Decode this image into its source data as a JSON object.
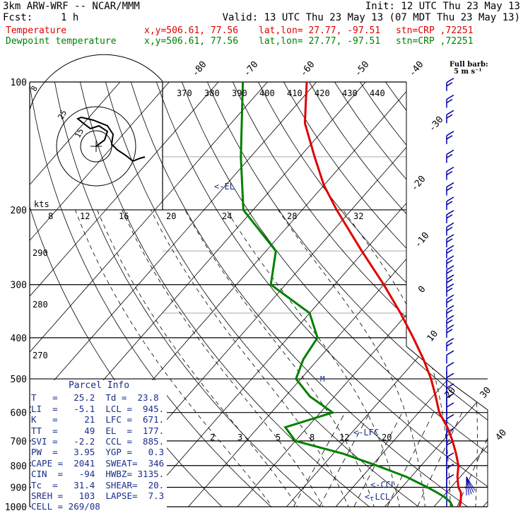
{
  "header": {
    "model": "3km ARW-WRF -- NCAR/MMM",
    "init": "Init: 12 UTC Thu 23 May 13",
    "fcst_label": "Fcst:",
    "fcst_value": "1 h",
    "valid": "Valid: 13 UTC Thu 23 May 13 (07 MDT Thu 23 May 13)",
    "temp_label": "Temperature",
    "dew_label": "Dewpoint temperature",
    "xy": "x,y=506.61, 77.56",
    "latlon": "lat,lon= 27.77, -97.51",
    "station": "stn=CRP ,72251"
  },
  "full_barb": {
    "line1": "Full barb:",
    "line2": "5 m s⁻¹"
  },
  "colors": {
    "temperature": "#e00000",
    "dewpoint": "#008000",
    "barbs": "#0000aa",
    "parcel": "#1a2e8a"
  },
  "chart_data": {
    "type": "skew-t log-p sounding",
    "pressure_levels": [
      100,
      200,
      300,
      400,
      500,
      600,
      700,
      800,
      900,
      1000
    ],
    "pressure_labels": [
      "100",
      "200",
      "300",
      "400",
      "500",
      "600",
      "700",
      "800",
      "900",
      "1000"
    ],
    "isotherm_labels": [
      "-80",
      "-70",
      "-60",
      "-50",
      "-40",
      "-30",
      "-20",
      "-10",
      "0",
      "10",
      "20",
      "30",
      "40"
    ],
    "theta_labels": [
      "370",
      "380",
      "390",
      "400",
      "410",
      "420",
      "430",
      "440"
    ],
    "theta_left_labels": [
      "290",
      "280",
      "270"
    ],
    "mixing_ratio_labels": [
      "2",
      "3",
      "5",
      "8",
      "12",
      "20"
    ],
    "hodo_axis_labels": [
      "kts",
      "8",
      "12",
      "16",
      "20",
      "24",
      "28",
      "32"
    ],
    "hodo_ring_labels": [
      "8",
      "25",
      "15"
    ],
    "markers": {
      "el": "<-EL",
      "lfc": "<-LFC",
      "ccl": "<-CCL",
      "lcl": "<-LCL"
    },
    "temperature": [
      {
        "p": 1000,
        "t": 25.2
      },
      {
        "p": 975,
        "t": 24.6
      },
      {
        "p": 950,
        "t": 23.8
      },
      {
        "p": 925,
        "t": 22.9
      },
      {
        "p": 900,
        "t": 21.5
      },
      {
        "p": 850,
        "t": 19.4
      },
      {
        "p": 800,
        "t": 17.6
      },
      {
        "p": 750,
        "t": 15.0
      },
      {
        "p": 700,
        "t": 12.0
      },
      {
        "p": 650,
        "t": 8.5
      },
      {
        "p": 600,
        "t": 4.2
      },
      {
        "p": 550,
        "t": 0.6
      },
      {
        "p": 500,
        "t": -3.5
      },
      {
        "p": 450,
        "t": -8.5
      },
      {
        "p": 400,
        "t": -14.5
      },
      {
        "p": 350,
        "t": -21.5
      },
      {
        "p": 300,
        "t": -30.0
      },
      {
        "p": 250,
        "t": -40.5
      },
      {
        "p": 200,
        "t": -53.0
      },
      {
        "p": 175,
        "t": -60.0
      },
      {
        "p": 150,
        "t": -67.0
      },
      {
        "p": 125,
        "t": -75.0
      },
      {
        "p": 100,
        "t": -82.0
      }
    ],
    "dewpoint": [
      {
        "p": 1000,
        "t": 23.8
      },
      {
        "p": 975,
        "t": 22.5
      },
      {
        "p": 950,
        "t": 20.5
      },
      {
        "p": 925,
        "t": 18.0
      },
      {
        "p": 900,
        "t": 15.2
      },
      {
        "p": 850,
        "t": 9.0
      },
      {
        "p": 800,
        "t": 1.0
      },
      {
        "p": 750,
        "t": -8.0
      },
      {
        "p": 700,
        "t": -20.0
      },
      {
        "p": 650,
        "t": -24.5
      },
      {
        "p": 600,
        "t": -17.5
      },
      {
        "p": 550,
        "t": -25.0
      },
      {
        "p": 500,
        "t": -31.0
      },
      {
        "p": 450,
        "t": -33.0
      },
      {
        "p": 400,
        "t": -34.0
      },
      {
        "p": 350,
        "t": -40.0
      },
      {
        "p": 300,
        "t": -53.0
      },
      {
        "p": 250,
        "t": -58.0
      },
      {
        "p": 200,
        "t": -72.0
      },
      {
        "p": 150,
        "t": -82.0
      },
      {
        "p": 100,
        "t": -95.0
      }
    ],
    "barb_pressures": [
      105,
      115,
      125,
      140,
      155,
      170,
      185,
      200,
      215,
      230,
      245,
      260,
      275,
      290,
      305,
      320,
      340,
      360,
      380,
      400,
      430,
      460,
      490,
      520,
      550,
      580,
      610,
      650,
      700,
      750,
      800,
      850,
      900,
      950,
      1000
    ]
  },
  "parcel_info": {
    "title": "Parcel Info",
    "rows": [
      "T   =   25.2  Td =  23.8",
      "LI  =   -5.1  LCL =  945.",
      "K   =     21  LFC =  671.",
      "TT  =     49  EL  =  177.",
      "SVI =   -2.2  CCL =  885.",
      "PW  =   3.95  YGP =   0.3",
      "CAPE =  2041  SWEAT=  346",
      "CIN  =   -94  HWBZ= 3135.",
      "Tc  =   31.4  SHEAR=  20.",
      "SREH =   103  LAPSE=  7.3",
      "CELL = 269/08"
    ]
  }
}
